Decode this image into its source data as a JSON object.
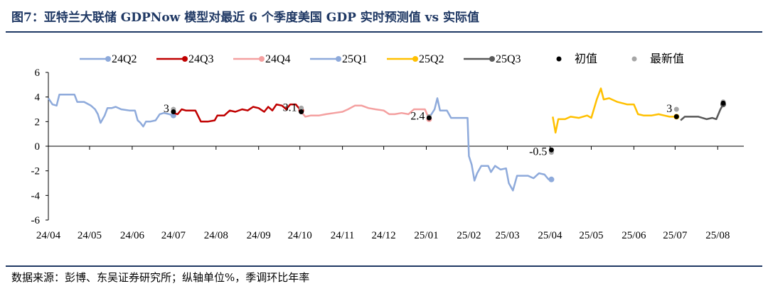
{
  "figure": {
    "title": "图7：亚特兰大联储 GDPNow 模型对最近 6 个季度美国 GDP 实时预测值 vs 实际值",
    "source": "数据来源：彭博、东吴证券研究所；纵轴单位%，季调环比年率"
  },
  "chart_data": {
    "type": "line",
    "title": "",
    "xlabel": "",
    "ylabel": "",
    "ylim": [
      -6,
      6
    ],
    "yticks": [
      -6,
      -4,
      -2,
      0,
      2,
      4,
      6
    ],
    "xlim": [
      "2024-04-01",
      "2025-08-20"
    ],
    "xticks": [
      {
        "label": "24/04",
        "date": "2024-04-01"
      },
      {
        "label": "24/05",
        "date": "2024-05-01"
      },
      {
        "label": "24/06",
        "date": "2024-06-01"
      },
      {
        "label": "24/07",
        "date": "2024-07-01"
      },
      {
        "label": "24/08",
        "date": "2024-08-01"
      },
      {
        "label": "24/09",
        "date": "2024-09-01"
      },
      {
        "label": "24/10",
        "date": "2024-10-01"
      },
      {
        "label": "24/11",
        "date": "2024-11-01"
      },
      {
        "label": "24/12",
        "date": "2024-12-01"
      },
      {
        "label": "25/01",
        "date": "2025-01-01"
      },
      {
        "label": "25/02",
        "date": "2025-02-01"
      },
      {
        "label": "25/03",
        "date": "2025-03-01"
      },
      {
        "label": "25/04",
        "date": "2025-04-01"
      },
      {
        "label": "25/05",
        "date": "2025-05-01"
      },
      {
        "label": "25/06",
        "date": "2025-06-01"
      },
      {
        "label": "25/07",
        "date": "2025-07-01"
      },
      {
        "label": "25/08",
        "date": "2025-08-01"
      }
    ],
    "grid": false,
    "legend_position": "top",
    "series": [
      {
        "name": "24Q2",
        "color": "#8eaadb",
        "points": [
          [
            "2024-04-01",
            3.9
          ],
          [
            "2024-04-04",
            3.4
          ],
          [
            "2024-04-07",
            3.3
          ],
          [
            "2024-04-09",
            4.2
          ],
          [
            "2024-04-14",
            4.2
          ],
          [
            "2024-04-20",
            4.2
          ],
          [
            "2024-04-22",
            3.6
          ],
          [
            "2024-04-27",
            3.6
          ],
          [
            "2024-05-02",
            3.3
          ],
          [
            "2024-05-05",
            3.0
          ],
          [
            "2024-05-07",
            2.6
          ],
          [
            "2024-05-09",
            1.9
          ],
          [
            "2024-05-12",
            2.5
          ],
          [
            "2024-05-14",
            3.1
          ],
          [
            "2024-05-17",
            3.1
          ],
          [
            "2024-05-20",
            3.2
          ],
          [
            "2024-05-24",
            3.0
          ],
          [
            "2024-05-30",
            2.9
          ],
          [
            "2024-06-03",
            2.9
          ],
          [
            "2024-06-05",
            2.1
          ],
          [
            "2024-06-07",
            1.9
          ],
          [
            "2024-06-09",
            1.6
          ],
          [
            "2024-06-11",
            2.0
          ],
          [
            "2024-06-14",
            2.0
          ],
          [
            "2024-06-18",
            2.1
          ],
          [
            "2024-06-21",
            2.6
          ],
          [
            "2024-06-24",
            2.7
          ],
          [
            "2024-06-28",
            2.6
          ],
          [
            "2024-07-01",
            2.5
          ]
        ]
      },
      {
        "name": "24Q3",
        "color": "#c00000",
        "points": [
          [
            "2024-07-01",
            2.7
          ],
          [
            "2024-07-04",
            2.6
          ],
          [
            "2024-07-07",
            3.0
          ],
          [
            "2024-07-10",
            2.9
          ],
          [
            "2024-07-17",
            2.9
          ],
          [
            "2024-07-21",
            2.0
          ],
          [
            "2024-07-26",
            2.0
          ],
          [
            "2024-07-31",
            2.1
          ],
          [
            "2024-08-02",
            2.5
          ],
          [
            "2024-08-07",
            2.5
          ],
          [
            "2024-08-11",
            2.9
          ],
          [
            "2024-08-15",
            2.8
          ],
          [
            "2024-08-20",
            3.0
          ],
          [
            "2024-08-24",
            2.9
          ],
          [
            "2024-08-28",
            3.2
          ],
          [
            "2024-09-01",
            3.1
          ],
          [
            "2024-09-05",
            2.8
          ],
          [
            "2024-09-08",
            3.2
          ],
          [
            "2024-09-11",
            2.9
          ],
          [
            "2024-09-14",
            3.4
          ],
          [
            "2024-09-18",
            3.3
          ],
          [
            "2024-09-21",
            3.0
          ],
          [
            "2024-09-24",
            3.4
          ],
          [
            "2024-09-28",
            3.4
          ],
          [
            "2024-10-01",
            3.0
          ],
          [
            "2024-10-02",
            2.9
          ]
        ]
      },
      {
        "name": "24Q4",
        "color": "#f4a0a0",
        "points": [
          [
            "2024-10-02",
            2.8
          ],
          [
            "2024-10-05",
            2.4
          ],
          [
            "2024-10-09",
            2.5
          ],
          [
            "2024-10-15",
            2.5
          ],
          [
            "2024-10-20",
            2.6
          ],
          [
            "2024-10-26",
            2.7
          ],
          [
            "2024-11-01",
            2.8
          ],
          [
            "2024-11-05",
            3.0
          ],
          [
            "2024-11-10",
            3.3
          ],
          [
            "2024-11-15",
            3.3
          ],
          [
            "2024-11-20",
            3.1
          ],
          [
            "2024-11-25",
            3.0
          ],
          [
            "2024-12-01",
            2.9
          ],
          [
            "2024-12-05",
            2.6
          ],
          [
            "2024-12-09",
            2.6
          ],
          [
            "2024-12-14",
            2.7
          ],
          [
            "2024-12-19",
            2.6
          ],
          [
            "2024-12-23",
            3.0
          ],
          [
            "2024-12-31",
            3.0
          ],
          [
            "2025-01-03",
            2.2
          ]
        ]
      },
      {
        "name": "25Q1",
        "color": "#8eaadb",
        "points": [
          [
            "2025-01-03",
            2.3
          ],
          [
            "2025-01-07",
            3.0
          ],
          [
            "2025-01-09",
            3.9
          ],
          [
            "2025-01-11",
            2.9
          ],
          [
            "2025-01-16",
            2.9
          ],
          [
            "2025-01-19",
            2.3
          ],
          [
            "2025-01-26",
            2.3
          ],
          [
            "2025-01-31",
            2.3
          ],
          [
            "2025-02-01",
            -0.8
          ],
          [
            "2025-02-03",
            -1.5
          ],
          [
            "2025-02-05",
            -2.8
          ],
          [
            "2025-02-07",
            -2.2
          ],
          [
            "2025-02-10",
            -1.6
          ],
          [
            "2025-02-15",
            -1.6
          ],
          [
            "2025-02-17",
            -2.1
          ],
          [
            "2025-02-20",
            -1.6
          ],
          [
            "2025-02-24",
            -1.9
          ],
          [
            "2025-02-28",
            -1.8
          ],
          [
            "2025-03-02",
            -3.0
          ],
          [
            "2025-03-05",
            -3.6
          ],
          [
            "2025-03-08",
            -2.4
          ],
          [
            "2025-03-12",
            -2.4
          ],
          [
            "2025-03-16",
            -2.4
          ],
          [
            "2025-03-20",
            -2.6
          ],
          [
            "2025-03-24",
            -2.2
          ],
          [
            "2025-03-28",
            -2.3
          ],
          [
            "2025-03-31",
            -2.7
          ],
          [
            "2025-04-02",
            -2.7
          ]
        ]
      },
      {
        "name": "25Q2",
        "color": "#ffc000",
        "points": [
          [
            "2025-04-03",
            2.4
          ],
          [
            "2025-04-05",
            1.1
          ],
          [
            "2025-04-07",
            2.2
          ],
          [
            "2025-04-12",
            2.2
          ],
          [
            "2025-04-16",
            2.4
          ],
          [
            "2025-04-22",
            2.3
          ],
          [
            "2025-04-28",
            2.5
          ],
          [
            "2025-05-01",
            2.3
          ],
          [
            "2025-05-05",
            3.8
          ],
          [
            "2025-05-08",
            4.7
          ],
          [
            "2025-05-10",
            3.8
          ],
          [
            "2025-05-14",
            3.9
          ],
          [
            "2025-05-20",
            3.6
          ],
          [
            "2025-05-27",
            3.4
          ],
          [
            "2025-06-01",
            3.4
          ],
          [
            "2025-06-04",
            2.6
          ],
          [
            "2025-06-08",
            2.5
          ],
          [
            "2025-06-14",
            2.5
          ],
          [
            "2025-06-19",
            2.6
          ],
          [
            "2025-06-23",
            2.5
          ],
          [
            "2025-06-27",
            2.4
          ],
          [
            "2025-07-02",
            2.4
          ]
        ]
      },
      {
        "name": "25Q3",
        "color": "#595959",
        "points": [
          [
            "2025-07-05",
            2.1
          ],
          [
            "2025-07-08",
            2.4
          ],
          [
            "2025-07-12",
            2.4
          ],
          [
            "2025-07-18",
            2.4
          ],
          [
            "2025-07-24",
            2.2
          ],
          [
            "2025-07-28",
            2.3
          ],
          [
            "2025-07-31",
            2.2
          ],
          [
            "2025-08-03",
            3.0
          ],
          [
            "2025-08-05",
            3.4
          ]
        ]
      }
    ],
    "initial_values": {
      "name": "初值",
      "color": "#000000",
      "points": [
        [
          "2024-07-01",
          2.8
        ],
        [
          "2024-10-02",
          2.8
        ],
        [
          "2025-01-03",
          2.3
        ],
        [
          "2025-04-02",
          -0.3
        ],
        [
          "2025-07-02",
          2.4
        ],
        [
          "2025-08-05",
          3.5
        ]
      ]
    },
    "latest_values": {
      "name": "最新值",
      "color": "#a6a6a6",
      "points": [
        [
          "2024-07-01",
          3.0
        ],
        [
          "2024-10-02",
          3.1
        ],
        [
          "2025-01-03",
          2.4
        ],
        [
          "2025-04-02",
          -0.5
        ],
        [
          "2025-07-02",
          3.0
        ],
        [
          "2025-08-05",
          3.6
        ]
      ]
    },
    "annotations": [
      {
        "text": "3",
        "date": "2024-07-01",
        "y": 3.0
      },
      {
        "text": "3.1",
        "date": "2024-10-02",
        "y": 3.1
      },
      {
        "text": "2.4",
        "date": "2025-01-03",
        "y": 2.4
      },
      {
        "text": "-0.5",
        "date": "2025-04-02",
        "y": -0.5
      },
      {
        "text": "3",
        "date": "2025-07-02",
        "y": 3.0
      }
    ]
  }
}
